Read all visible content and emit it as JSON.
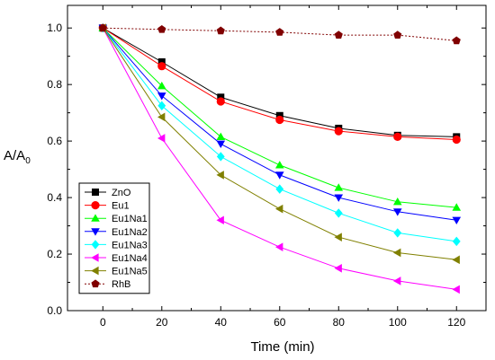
{
  "chart_data": {
    "type": "line",
    "title": "",
    "xlabel": "Time (min)",
    "ylabel_main": "A/A",
    "ylabel_sub": "0",
    "x": [
      0,
      20,
      40,
      60,
      80,
      100,
      120
    ],
    "xlim": [
      -12,
      130
    ],
    "ylim": [
      0.0,
      1.08
    ],
    "xticks": [
      "0",
      "20",
      "40",
      "60",
      "80",
      "100",
      "120"
    ],
    "yticks": [
      "0.0",
      "0.2",
      "0.4",
      "0.6",
      "0.8",
      "1.0"
    ],
    "xtick_values": [
      0,
      20,
      40,
      60,
      80,
      100,
      120
    ],
    "ytick_values": [
      0.0,
      0.2,
      0.4,
      0.6,
      0.8,
      1.0
    ],
    "legend_position": "bottom-left",
    "grid": false,
    "series": [
      {
        "name": "ZnO",
        "color": "#000000",
        "marker": "square",
        "line": "solid",
        "values": [
          1.0,
          0.88,
          0.755,
          0.69,
          0.645,
          0.62,
          0.615
        ]
      },
      {
        "name": "Eu1",
        "color": "#ff0000",
        "marker": "circle",
        "line": "solid",
        "values": [
          1.0,
          0.865,
          0.74,
          0.675,
          0.635,
          0.615,
          0.605
        ]
      },
      {
        "name": "Eu1Na1",
        "color": "#00ff00",
        "marker": "triangle-up",
        "line": "solid",
        "values": [
          1.0,
          0.795,
          0.615,
          0.515,
          0.435,
          0.385,
          0.365
        ]
      },
      {
        "name": "Eu1Na2",
        "color": "#0000ff",
        "marker": "triangle-down",
        "line": "solid",
        "values": [
          1.0,
          0.76,
          0.59,
          0.48,
          0.4,
          0.35,
          0.32
        ]
      },
      {
        "name": "Eu1Na3",
        "color": "#00ffff",
        "marker": "diamond",
        "line": "solid",
        "values": [
          1.0,
          0.725,
          0.545,
          0.43,
          0.345,
          0.275,
          0.245
        ]
      },
      {
        "name": "Eu1Na4",
        "color": "#ff00ff",
        "marker": "triangle-left",
        "line": "solid",
        "values": [
          1.0,
          0.61,
          0.32,
          0.225,
          0.15,
          0.105,
          0.075
        ]
      },
      {
        "name": "Eu1Na5",
        "color": "#808000",
        "marker": "triangle-left",
        "line": "solid",
        "values": [
          1.0,
          0.685,
          0.48,
          0.36,
          0.26,
          0.205,
          0.18
        ]
      },
      {
        "name": "RhB",
        "color": "#800000",
        "marker": "pentagon",
        "line": "dotted",
        "values": [
          1.0,
          0.995,
          0.99,
          0.985,
          0.975,
          0.975,
          0.955
        ]
      }
    ]
  }
}
